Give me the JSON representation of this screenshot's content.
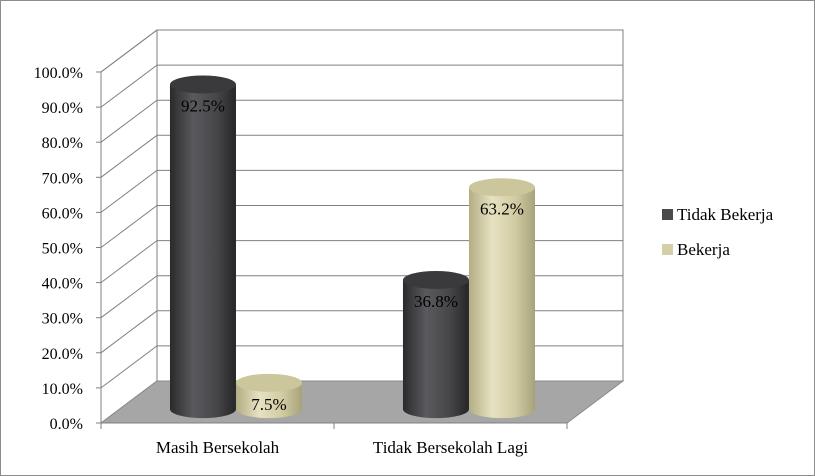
{
  "chart_data": {
    "type": "bar",
    "subtype": "3d-cylinder",
    "categories": [
      "Masih Bersekolah",
      "Tidak Bersekolah Lagi"
    ],
    "series": [
      {
        "name": "Tidak Bekerja",
        "values": [
          92.5,
          36.8
        ],
        "color": "#4a4a4c"
      },
      {
        "name": "Bekerja",
        "values": [
          7.5,
          63.2
        ],
        "color": "#d4cfa6"
      }
    ],
    "data_labels": [
      [
        "92.5%",
        "36.8%"
      ],
      [
        "7.5%",
        "63.2%"
      ]
    ],
    "y_ticks": [
      "0.0%",
      "10.0%",
      "20.0%",
      "30.0%",
      "40.0%",
      "50.0%",
      "60.0%",
      "70.0%",
      "80.0%",
      "90.0%",
      "100.0%"
    ],
    "ylim": [
      0,
      100
    ],
    "grid": true,
    "legend_position": "right",
    "floor_color": "#a6a6a6"
  }
}
